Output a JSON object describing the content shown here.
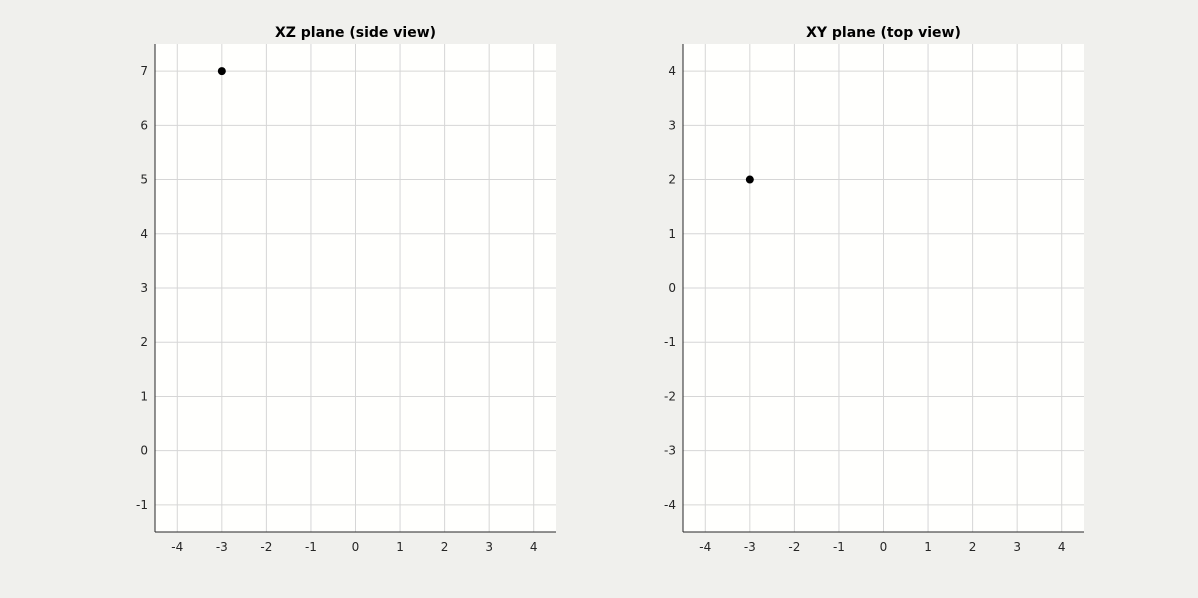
{
  "colors": {
    "figure_background": "#f0f0ed",
    "plot_background": "#fffffd",
    "grid": "#d6d6d6",
    "axis": "#262626",
    "marker": "#000000"
  },
  "chart_data": [
    {
      "type": "scatter",
      "title": "XZ plane (side view)",
      "xlabel": "",
      "ylabel": "",
      "xlim": [
        -4.5,
        4.5
      ],
      "ylim": [
        -1.5,
        7.5
      ],
      "xticks": [
        -4,
        -3,
        -2,
        -1,
        0,
        1,
        2,
        3,
        4
      ],
      "yticks": [
        -1,
        0,
        1,
        2,
        3,
        4,
        5,
        6,
        7
      ],
      "xtick_labels": [
        "-4",
        "-3",
        "-2",
        "-1",
        "0",
        "1",
        "2",
        "3",
        "4"
      ],
      "ytick_labels": [
        "-1",
        "0",
        "1",
        "2",
        "3",
        "4",
        "5",
        "6",
        "7"
      ],
      "grid": true,
      "points": [
        {
          "x": -3,
          "y": 7
        }
      ]
    },
    {
      "type": "scatter",
      "title": "XY plane (top view)",
      "xlabel": "",
      "ylabel": "",
      "xlim": [
        -4.5,
        4.5
      ],
      "ylim": [
        -4.5,
        4.5
      ],
      "xticks": [
        -4,
        -3,
        -2,
        -1,
        0,
        1,
        2,
        3,
        4
      ],
      "yticks": [
        -4,
        -3,
        -2,
        -1,
        0,
        1,
        2,
        3,
        4
      ],
      "xtick_labels": [
        "-4",
        "-3",
        "-2",
        "-1",
        "0",
        "1",
        "2",
        "3",
        "4"
      ],
      "ytick_labels": [
        "-4",
        "-3",
        "-2",
        "-1",
        "0",
        "1",
        "2",
        "3",
        "4"
      ],
      "grid": true,
      "points": [
        {
          "x": -3,
          "y": 2
        }
      ]
    }
  ]
}
